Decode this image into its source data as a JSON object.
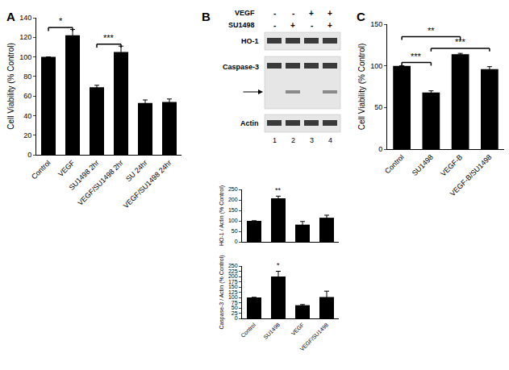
{
  "chart_data": [
    {
      "panel": "A",
      "type": "bar",
      "y_label": "Cell Viability (% Control)",
      "categories": [
        "Control",
        "VEGF",
        "SU1498 2hr",
        "VEGF/SU1498 2hr",
        "SU 24hr",
        "VEGF/SU1498 24hr"
      ],
      "values": [
        100,
        122,
        69,
        105,
        53,
        54
      ],
      "errors": [
        0,
        6,
        2,
        6,
        3,
        3
      ],
      "color": "#000000",
      "ylim": [
        0,
        140
      ],
      "yticks": [
        0,
        20,
        40,
        60,
        80,
        100,
        120,
        140
      ],
      "significance": [
        {
          "from": "Control",
          "to": "VEGF",
          "label": "*",
          "y": 130
        },
        {
          "from": "SU1498 2hr",
          "to": "VEGF/SU1498 2hr",
          "label": "***",
          "y": 113
        }
      ]
    },
    {
      "panel": "B",
      "type": "bar",
      "y_label": "HO-1 / Actin (% Control)",
      "categories": [
        "Control",
        "SU1498",
        "VEGF",
        "VEGF/SU1498"
      ],
      "values": [
        100,
        208,
        82,
        115
      ],
      "errors": [
        0,
        10,
        15,
        12
      ],
      "color": "#000000",
      "ylim": [
        0,
        250
      ],
      "yticks": [
        0,
        50,
        100,
        150,
        200,
        250
      ],
      "tick_labels": "y",
      "significance": [
        {
          "at": "SU1498",
          "label": "**",
          "y": 220
        }
      ]
    },
    {
      "panel": "B",
      "type": "bar",
      "y_label": "Caspase-3 / Actin (% Control)",
      "categories": [
        "Control",
        "SU1498",
        "VEGF",
        "VEGF/SU1498"
      ],
      "values": [
        100,
        200,
        63,
        102
      ],
      "errors": [
        0,
        25,
        3,
        28
      ],
      "color": "#000000",
      "ylim": [
        0,
        250
      ],
      "yticks": [
        0,
        25,
        50,
        75,
        100,
        125,
        150,
        175,
        200,
        225,
        250
      ],
      "significance": [
        {
          "at": "SU1498",
          "label": "*",
          "y": 227
        }
      ]
    },
    {
      "panel": "C",
      "type": "bar",
      "y_label": "Cell Viability (% Control)",
      "categories": [
        "Control",
        "SU1498",
        "VEGF-B",
        "VEGF-B/SU1498"
      ],
      "values": [
        100,
        68,
        114,
        96
      ],
      "errors": [
        0,
        2,
        1,
        3
      ],
      "color": "#000000",
      "ylim": [
        0,
        150
      ],
      "yticks": [
        0,
        50,
        100,
        150
      ],
      "significance": [
        {
          "from": "Control",
          "to": "VEGF-B",
          "label": "**",
          "y": 135
        },
        {
          "from": "Control",
          "to": "SU1498",
          "label": "***",
          "y": 104
        },
        {
          "from": "SU1498",
          "to": "VEGF-B/SU1498",
          "label": "***",
          "y": 121
        }
      ]
    }
  ],
  "blot": {
    "panel": "B",
    "treatments": [
      {
        "label": "VEGF",
        "signs": [
          "-",
          "-",
          "+",
          "+"
        ]
      },
      {
        "label": "SU1498",
        "signs": [
          "-",
          "+",
          "-",
          "+"
        ]
      }
    ],
    "bands": [
      "HO-1",
      "Caspase-3",
      "Actin"
    ],
    "lanes": [
      "1",
      "2",
      "3",
      "4"
    ]
  }
}
